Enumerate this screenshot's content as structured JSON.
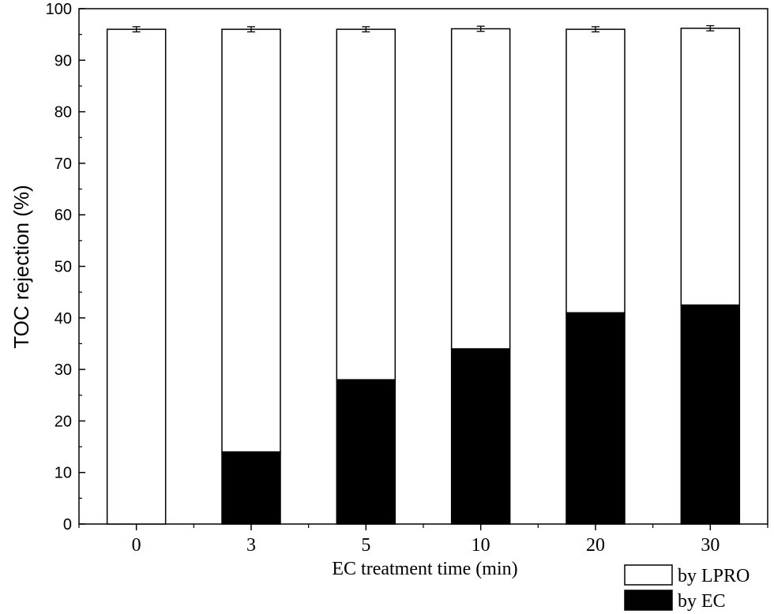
{
  "chart_data": {
    "type": "bar",
    "stacked": true,
    "categories": [
      "0",
      "3",
      "5",
      "10",
      "20",
      "30"
    ],
    "series": [
      {
        "name": "by EC",
        "values": [
          0,
          14,
          28,
          34,
          41,
          42.5
        ],
        "color": "#000000"
      },
      {
        "name": "by LPRO",
        "values": [
          96,
          82,
          68,
          62.1,
          55,
          53.7
        ],
        "color": "#ffffff"
      }
    ],
    "totals": [
      96,
      96,
      96,
      96.1,
      96,
      96.2
    ],
    "error_bars": [
      0.5,
      0.5,
      0.5,
      0.5,
      0.5,
      0.5
    ],
    "xlabel": "EC treatment time (min)",
    "ylabel": "TOC rejection (%)",
    "ylim": [
      0,
      100
    ],
    "yticks": [
      0,
      10,
      20,
      30,
      40,
      50,
      60,
      70,
      80,
      90,
      100
    ],
    "legend_position": "bottom-right",
    "grid": false
  }
}
